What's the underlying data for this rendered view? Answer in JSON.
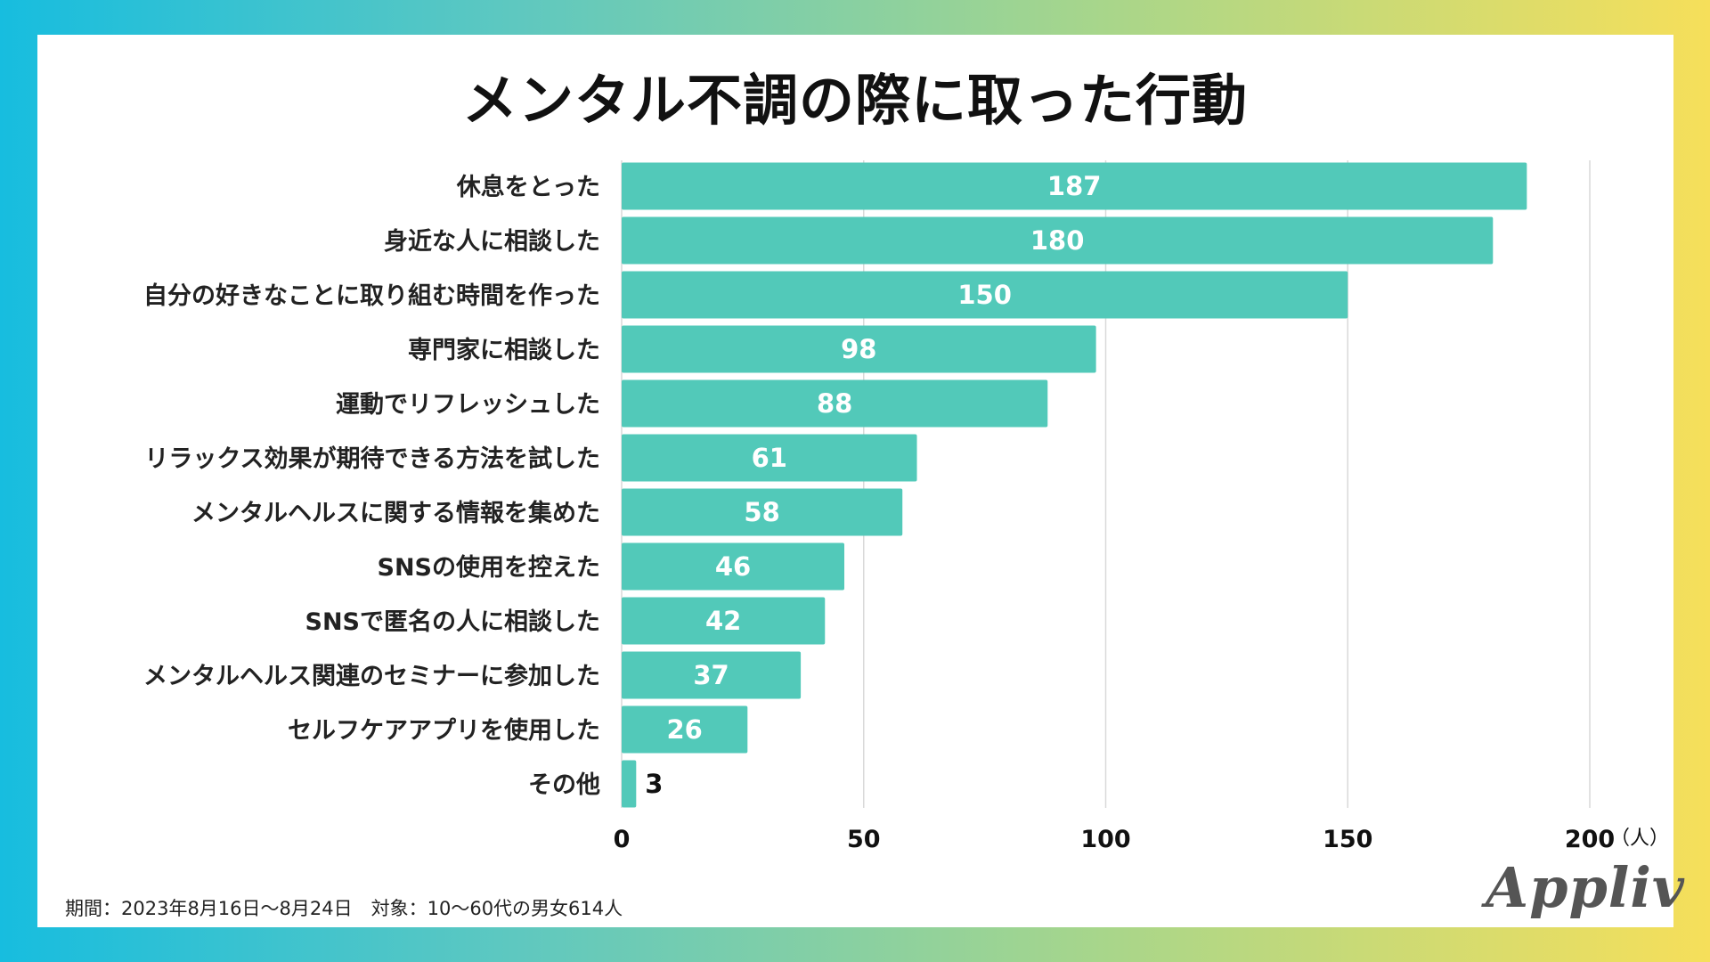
{
  "title": "メンタル不調の際に取った行動",
  "footnote": "期間：2023年8月16日〜8月24日　対象：10〜60代の男女614人",
  "logo": "Appliv",
  "colors": {
    "bar": "#52c9b9",
    "grid": "#d9d9d9",
    "background_gradient_start": "#17bddf",
    "background_gradient_end": "#f6df5a"
  },
  "chart_data": {
    "type": "bar",
    "orientation": "horizontal",
    "title": "メンタル不調の際に取った行動",
    "categories": [
      "休息をとった",
      "身近な人に相談した",
      "自分の好きなことに取り組む時間を作った",
      "専門家に相談した",
      "運動でリフレッシュした",
      "リラックス効果が期待できる方法を試した",
      "メンタルヘルスに関する情報を集めた",
      "SNSの使用を控えた",
      "SNSで匿名の人に相談した",
      "メンタルヘルス関連のセミナーに参加した",
      "セルフケアアプリを使用した",
      "その他"
    ],
    "values": [
      187,
      180,
      150,
      98,
      88,
      61,
      58,
      46,
      42,
      37,
      26,
      3
    ],
    "xlim": [
      0,
      200
    ],
    "ticks": [
      0,
      50,
      100,
      150,
      200
    ],
    "unit": "（人）",
    "grid": true
  }
}
